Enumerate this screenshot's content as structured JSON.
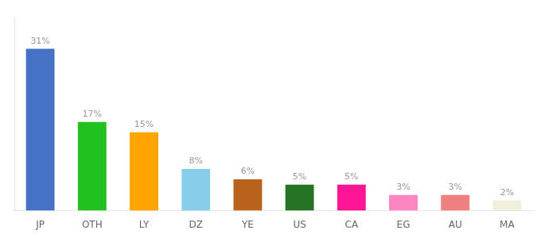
{
  "chart_data": {
    "type": "bar",
    "categories": [
      "JP",
      "OTH",
      "LY",
      "DZ",
      "YE",
      "US",
      "CA",
      "EG",
      "AU",
      "MA"
    ],
    "values": [
      31,
      17,
      15,
      8,
      6,
      5,
      5,
      3,
      3,
      2
    ],
    "value_labels": [
      "31%",
      "17%",
      "15%",
      "8%",
      "6%",
      "5%",
      "5%",
      "3%",
      "3%",
      "2%"
    ],
    "colors": [
      "#4472C4",
      "#22C020",
      "#FFA500",
      "#87CEEB",
      "#B8621B",
      "#267326",
      "#FF1493",
      "#FF85C0",
      "#F08080",
      "#F0F0DC"
    ],
    "ylim": [
      0,
      37
    ],
    "grid": false,
    "data_labels": true,
    "tick_labels": "x"
  }
}
